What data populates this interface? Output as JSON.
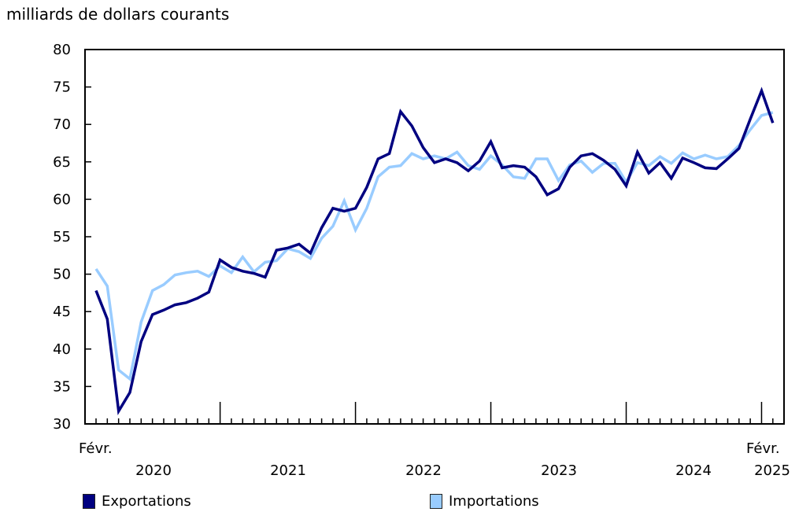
{
  "chart_data": {
    "type": "line",
    "title": "",
    "ylabel": "milliards de dollars courants",
    "xlabel": "",
    "ylim": [
      30,
      80
    ],
    "yticks": [
      30,
      35,
      40,
      45,
      50,
      55,
      60,
      65,
      70,
      75,
      80
    ],
    "x_start_label": "Févr.",
    "x_end_label": "Févr.",
    "year_labels": [
      "2020",
      "2021",
      "2022",
      "2023",
      "2024",
      "2025"
    ],
    "x": [
      "2020-02",
      "2020-03",
      "2020-04",
      "2020-05",
      "2020-06",
      "2020-07",
      "2020-08",
      "2020-09",
      "2020-10",
      "2020-11",
      "2020-12",
      "2021-01",
      "2021-02",
      "2021-03",
      "2021-04",
      "2021-05",
      "2021-06",
      "2021-07",
      "2021-08",
      "2021-09",
      "2021-10",
      "2021-11",
      "2021-12",
      "2022-01",
      "2022-02",
      "2022-03",
      "2022-04",
      "2022-05",
      "2022-06",
      "2022-07",
      "2022-08",
      "2022-09",
      "2022-10",
      "2022-11",
      "2022-12",
      "2023-01",
      "2023-02",
      "2023-03",
      "2023-04",
      "2023-05",
      "2023-06",
      "2023-07",
      "2023-08",
      "2023-09",
      "2023-10",
      "2023-11",
      "2023-12",
      "2024-01",
      "2024-02",
      "2024-03",
      "2024-04",
      "2024-05",
      "2024-06",
      "2024-07",
      "2024-08",
      "2024-09",
      "2024-10",
      "2024-11",
      "2024-12",
      "2025-01",
      "2025-02"
    ],
    "series": [
      {
        "name": "Exportations",
        "color": "#000080",
        "values": [
          47.8,
          44.0,
          31.7,
          34.2,
          41.0,
          44.6,
          45.2,
          45.9,
          46.2,
          46.8,
          47.6,
          51.9,
          50.9,
          50.4,
          50.1,
          49.6,
          53.2,
          53.5,
          54.0,
          52.8,
          56.2,
          58.8,
          58.4,
          58.8,
          61.6,
          65.4,
          66.1,
          71.7,
          69.8,
          66.9,
          64.9,
          65.4,
          64.9,
          63.8,
          65.1,
          67.7,
          64.2,
          64.5,
          64.3,
          63.0,
          60.6,
          61.4,
          64.3,
          65.8,
          66.1,
          65.2,
          64.0,
          61.8,
          66.3,
          63.5,
          64.9,
          62.8,
          65.5,
          64.9,
          64.2,
          64.1,
          65.4,
          66.8,
          70.7,
          74.5,
          70.2
        ]
      },
      {
        "name": "Importations",
        "color": "#99CCFF",
        "values": [
          50.7,
          48.4,
          37.2,
          36.0,
          43.6,
          47.8,
          48.6,
          49.9,
          50.2,
          50.4,
          49.7,
          51.1,
          50.2,
          52.3,
          50.3,
          51.6,
          51.8,
          53.4,
          53.0,
          52.1,
          54.8,
          56.4,
          59.8,
          55.9,
          58.8,
          63.0,
          64.3,
          64.5,
          66.1,
          65.4,
          65.8,
          65.4,
          66.3,
          64.5,
          64.0,
          65.8,
          64.6,
          63.0,
          62.8,
          65.4,
          65.4,
          62.5,
          64.6,
          65.1,
          63.6,
          64.8,
          64.8,
          62.3,
          64.9,
          64.5,
          65.7,
          64.8,
          66.2,
          65.4,
          65.9,
          65.4,
          65.7,
          67.2,
          69.3,
          71.2,
          71.6
        ]
      }
    ],
    "legend_position": "bottom",
    "grid": false
  },
  "labels": {
    "unit": "milliards de dollars courants",
    "start_month": "Févr.",
    "end_month": "Févr."
  },
  "legend": {
    "items": [
      {
        "label": "Exportations",
        "color": "#000080"
      },
      {
        "label": "Importations",
        "color": "#99CCFF"
      }
    ]
  }
}
